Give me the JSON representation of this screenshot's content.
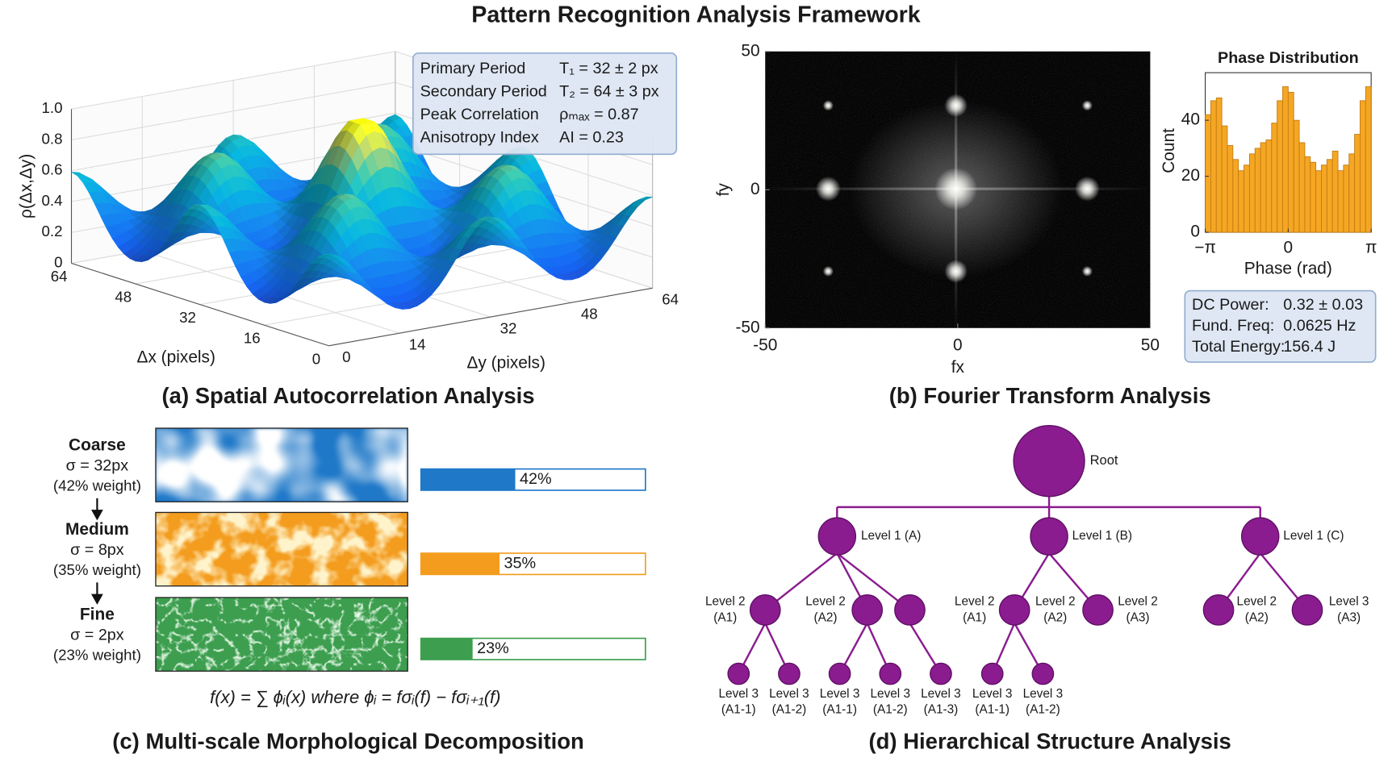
{
  "title": "Pattern Recognition Analysis Framework",
  "chart_data": [
    {
      "type": "surface",
      "caption": "(a) Spatial Autocorrelation Analysis",
      "zlabel": "ρ(Δx,Δy)",
      "xlabel": "Δx (pixels)",
      "ylabel": "Δy (pixels)",
      "xlim": [
        0,
        64
      ],
      "ylim": [
        0,
        64
      ],
      "zlim": [
        0,
        1
      ],
      "xticks": [
        0,
        16,
        32,
        48,
        64
      ],
      "yticks": [
        0,
        14,
        32,
        48,
        64
      ],
      "zticks": [
        0,
        0.2,
        0.4,
        0.6,
        0.8,
        {
          "value": 1,
          "label": "1.0"
        }
      ],
      "stats": [
        {
          "name": "Primary Period",
          "value": "T₁ = 32 ± 2 px"
        },
        {
          "name": "Secondary Period",
          "value": "T₂ = 64 ± 3 px"
        },
        {
          "name": "Peak Correlation",
          "value": "ρₘₐₓ = 0.87"
        },
        {
          "name": "Anisotropy Index",
          "value": "AI = 0.23"
        }
      ]
    },
    {
      "type": "image",
      "caption": "(b) Fourier Transform Analysis",
      "xlabel": "fx",
      "ylabel": "fy",
      "xlim": [
        -50,
        50
      ],
      "ylim": [
        -50,
        50
      ],
      "xticks": [
        -50,
        0,
        50
      ],
      "yticks": [
        -50,
        0,
        50
      ],
      "stats": [
        {
          "name": "DC Power:",
          "value": "0.32 ± 0.03"
        },
        {
          "name": "Fund. Freq:",
          "value": "0.0625 Hz"
        },
        {
          "name": "Total Energy:",
          "value": "156.4 J"
        }
      ]
    },
    {
      "type": "histogram",
      "title": "Phase Distribution",
      "xlabel": "Phase (rad)",
      "ylabel": "Count",
      "color": "#f5a623",
      "bins": [
        -3.1416,
        -2.9322,
        -2.7227,
        -2.5133,
        -2.3038,
        -2.0944,
        -1.885,
        -1.6755,
        -1.4661,
        -1.2566,
        -1.0472,
        -0.8378,
        -0.6283,
        -0.4189,
        -0.2094,
        0,
        0.2094,
        0.4189,
        0.6283,
        0.8378,
        1.0472,
        1.2566,
        1.4661,
        1.6755,
        1.885,
        2.0944,
        2.3038,
        2.5133,
        2.7227,
        2.9322,
        3.1416
      ],
      "values": [
        42,
        47,
        48,
        38,
        31,
        26,
        22,
        24,
        28,
        30,
        32,
        33,
        39,
        47,
        52,
        50,
        40,
        32,
        27,
        25,
        22,
        24,
        26,
        29,
        22,
        24,
        28,
        35,
        47,
        52
      ],
      "xlim": [
        -3.1416,
        3.1416
      ],
      "ylim": [
        0,
        57
      ],
      "xticks": [
        {
          "value": -3.1416,
          "label": "−π"
        },
        0,
        {
          "value": 3.1416,
          "label": "π"
        }
      ],
      "yticks": [
        0,
        20,
        40
      ]
    },
    {
      "type": "bar",
      "caption": "(c) Multi-scale Morphological Decomposition",
      "categories": [
        "Coarse",
        "Medium",
        "Fine"
      ],
      "sublabels": [
        "σ = 32px",
        "σ = 8px",
        "σ = 2px"
      ],
      "weights": [
        "(42% weight)",
        "(35% weight)",
        "(23% weight)"
      ],
      "values": [
        42,
        35,
        23
      ],
      "value_labels": [
        "42%",
        "35%",
        "23%"
      ],
      "colors": [
        "#1f78c8",
        "#f39c1e",
        "#3c9e4e"
      ],
      "xlim": [
        0,
        100
      ],
      "formula": "f(x) = ∑ ϕᵢ(x) where ϕᵢ = fσᵢ(f) − fσᵢ₊₁(f)"
    }
  ],
  "tree": {
    "caption": "(d) Hierarchical Structure Analysis",
    "labels": [
      [
        "Root"
      ],
      [
        "Level 1 (A)"
      ],
      [
        "Level 1 (B)"
      ],
      [
        "Level 1 (C)"
      ],
      [
        "Level 2",
        "(A1)"
      ],
      [
        "Level 2",
        "(A2)"
      ],
      [
        "Level 2",
        "(A1)"
      ],
      [
        "Level 2",
        "(A2)"
      ],
      [
        "Level 2",
        "(A3)"
      ],
      [
        "Level 2",
        "(A2)"
      ],
      [
        "Level 3",
        "(A3)"
      ],
      [
        "Level 3",
        "(A1-1)"
      ],
      [
        "Level 3",
        "(A1-2)"
      ],
      [
        "Level 3",
        "(A1-1)"
      ],
      [
        "Level 3",
        "(A1-2)"
      ],
      [
        "Level 3",
        "(A1-3)"
      ],
      [
        "Level 3",
        "(A1-1)"
      ],
      [
        "Level 3",
        "(A1-2)"
      ]
    ]
  }
}
